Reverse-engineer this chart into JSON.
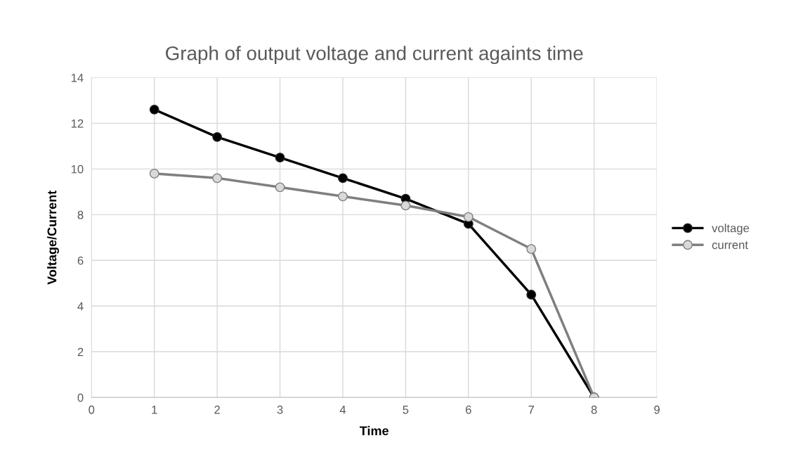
{
  "chart_data": {
    "type": "line",
    "title": "Graph of output voltage and current againts time",
    "xlabel": "Time",
    "ylabel": "Voltage/Current",
    "x": [
      1,
      2,
      3,
      4,
      5,
      6,
      7,
      8
    ],
    "series": [
      {
        "name": "voltage",
        "color": "#000000",
        "values": [
          12.6,
          11.4,
          10.5,
          9.6,
          8.7,
          7.6,
          4.5,
          0
        ]
      },
      {
        "name": "current",
        "color": "#7f7f7f",
        "values": [
          9.8,
          9.6,
          9.2,
          8.8,
          8.4,
          7.9,
          6.5,
          0
        ]
      }
    ],
    "xlim": [
      0,
      9
    ],
    "xticks": [
      0,
      1,
      2,
      3,
      4,
      5,
      6,
      7,
      8,
      9
    ],
    "ylim": [
      0,
      14
    ],
    "yticks": [
      0,
      2,
      4,
      6,
      8,
      10,
      12,
      14
    ],
    "grid": true,
    "legend": "right",
    "marker": "circle",
    "line_style": "solid"
  }
}
